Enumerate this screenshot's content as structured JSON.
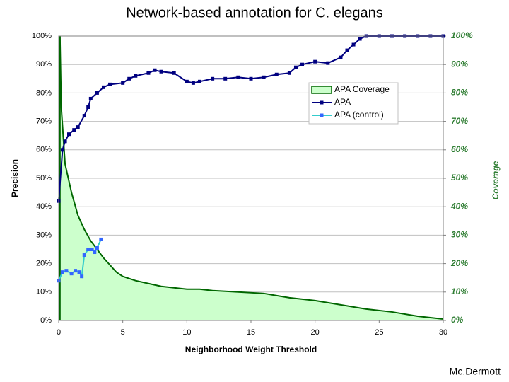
{
  "chart_data": {
    "type": "line",
    "title": "Network-based annotation for C. elegans",
    "footer": "Mc.Dermott",
    "x_label": "Neighborhood Weight Threshold",
    "y_label": "Precision",
    "y2_label": "Coverage",
    "xlim": [
      0,
      30
    ],
    "xticks": [
      0,
      5,
      10,
      15,
      20,
      25,
      30
    ],
    "ylim": [
      0,
      100
    ],
    "yticks": [
      {
        "value": 0,
        "label": "0%"
      },
      {
        "value": 10,
        "label": "10%"
      },
      {
        "value": 20,
        "label": "20%"
      },
      {
        "value": 30,
        "label": "30%"
      },
      {
        "value": 40,
        "label": "40%"
      },
      {
        "value": 50,
        "label": "50%"
      },
      {
        "value": 60,
        "label": "60%"
      },
      {
        "value": 70,
        "label": "70%"
      },
      {
        "value": 80,
        "label": "80%"
      },
      {
        "value": 90,
        "label": "90%"
      },
      {
        "value": 100,
        "label": "100%"
      }
    ],
    "y2lim": [
      0,
      100
    ],
    "y2ticks": [
      {
        "value": 0,
        "label": "0%"
      },
      {
        "value": 10,
        "label": "10%"
      },
      {
        "value": 20,
        "label": "20%"
      },
      {
        "value": 30,
        "label": "30%"
      },
      {
        "value": 40,
        "label": "40%"
      },
      {
        "value": 50,
        "label": "50%"
      },
      {
        "value": 60,
        "label": "60%"
      },
      {
        "value": 70,
        "label": "70%"
      },
      {
        "value": 80,
        "label": "80%"
      },
      {
        "value": 90,
        "label": "90%"
      },
      {
        "value": 100,
        "label": "100%"
      }
    ],
    "grid": true,
    "series": [
      {
        "name": "APA Coverage",
        "kind": "area",
        "axis": "y2",
        "color": "#006600",
        "fill": "#ccffcc",
        "x": [
          0.1,
          0.2,
          0.5,
          1,
          1.5,
          2,
          2.5,
          3,
          3.5,
          4,
          4.5,
          5,
          6,
          7,
          8,
          9,
          10,
          11,
          12,
          14,
          16,
          18,
          20,
          22,
          24,
          26,
          28,
          30
        ],
        "values": [
          100,
          75,
          55,
          45,
          37,
          32,
          28,
          25,
          22,
          19.5,
          17,
          15.5,
          14,
          13,
          12,
          11.5,
          11,
          11,
          10.5,
          10,
          9.5,
          8,
          7,
          5.5,
          4,
          3,
          1.5,
          0.5
        ]
      },
      {
        "name": "APA",
        "kind": "line",
        "color": "#000080",
        "marker_color": "#000080",
        "x": [
          0,
          0.3,
          0.5,
          0.8,
          1.2,
          1.5,
          2,
          2.3,
          2.5,
          3,
          3.5,
          4,
          5,
          5.5,
          6,
          7,
          7.5,
          8,
          9,
          10,
          10.5,
          11,
          12,
          13,
          14,
          15,
          16,
          17,
          18,
          18.5,
          19,
          20,
          21,
          22,
          22.5,
          23,
          23.5,
          24,
          25,
          26,
          27,
          28,
          29,
          30
        ],
        "values": [
          42,
          60,
          63,
          65.5,
          67,
          68,
          72,
          75,
          78,
          80,
          82,
          83,
          83.5,
          85,
          86,
          87,
          88,
          87.5,
          87,
          84,
          83.5,
          84,
          85,
          85,
          85.5,
          85,
          85.5,
          86.5,
          87,
          89,
          90,
          91,
          90.5,
          92.5,
          95,
          97,
          99,
          100,
          100,
          100,
          100,
          100,
          100,
          100
        ]
      },
      {
        "name": "APA (control)",
        "kind": "line",
        "color": "#33cccc",
        "marker_color": "#3366ff",
        "x": [
          0,
          0.3,
          0.6,
          1,
          1.3,
          1.6,
          1.8,
          2,
          2.3,
          2.6,
          2.8,
          3,
          3.3
        ],
        "values": [
          14,
          17,
          17.5,
          16.5,
          17.5,
          17,
          15.5,
          23,
          25,
          25,
          24,
          25.5,
          28.5
        ]
      }
    ]
  }
}
